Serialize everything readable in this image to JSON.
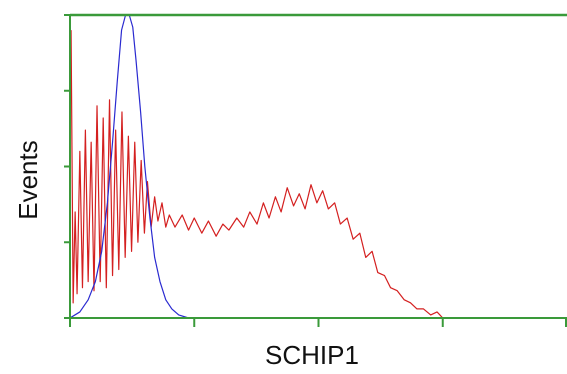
{
  "chart_data": {
    "type": "line",
    "x_label": "SCHIP1",
    "y_label": "Events",
    "xlim": [
      1,
      10000
    ],
    "xticks": [
      1,
      10,
      100,
      1000,
      10000
    ],
    "log_x": true,
    "ylim": [
      0,
      100
    ],
    "yticks": [
      0,
      25,
      50,
      75,
      100
    ],
    "grid": false,
    "axis_color": "#3a9a3a",
    "series": [
      {
        "color": "#d42020",
        "x": [
          1.02,
          1.06,
          1.1,
          1.14,
          1.2,
          1.26,
          1.33,
          1.4,
          1.48,
          1.56,
          1.65,
          1.75,
          1.85,
          1.96,
          2.08,
          2.2,
          2.33,
          2.47,
          2.62,
          2.78,
          2.95,
          3.13,
          3.32,
          3.52,
          3.74,
          3.97,
          4.2,
          4.5,
          4.8,
          5.1,
          5.5,
          5.9,
          6.3,
          7,
          8,
          9,
          10,
          11.5,
          13,
          15,
          17,
          19,
          22,
          25,
          28,
          32,
          36,
          40,
          45,
          50,
          56,
          63,
          70,
          78,
          87,
          97,
          108,
          120,
          135,
          150,
          170,
          190,
          215,
          240,
          270,
          300,
          340,
          380,
          430,
          490,
          550,
          620,
          700,
          800,
          900,
          1000,
          10000
        ],
        "values": [
          95,
          5,
          35,
          8,
          55,
          10,
          62,
          12,
          58,
          9,
          70,
          12,
          66,
          10,
          72,
          14,
          62,
          16,
          68,
          20,
          60,
          22,
          58,
          25,
          52,
          28,
          45,
          30,
          40,
          32,
          38,
          30,
          34,
          30,
          34,
          29,
          33,
          28,
          32,
          27,
          31,
          29,
          33,
          30,
          35,
          31,
          38,
          33,
          40,
          35,
          43,
          37,
          41,
          36,
          44,
          38,
          42,
          36,
          38,
          31,
          33,
          26,
          28,
          20,
          22,
          15,
          14,
          10,
          9,
          6,
          5,
          3,
          3,
          1,
          2,
          0,
          0
        ]
      },
      {
        "color": "#2a2ad0",
        "x": [
          1,
          1.2,
          1.4,
          1.6,
          1.8,
          2.0,
          2.2,
          2.4,
          2.6,
          2.8,
          3.0,
          3.2,
          3.4,
          3.7,
          4.0,
          4.4,
          4.8,
          5.3,
          5.9,
          6.6,
          7.5,
          9,
          11
        ],
        "values": [
          0,
          2,
          6,
          12,
          22,
          38,
          58,
          78,
          95,
          100,
          100,
          96,
          85,
          68,
          50,
          33,
          20,
          12,
          6,
          3,
          1,
          0,
          0
        ]
      }
    ]
  }
}
